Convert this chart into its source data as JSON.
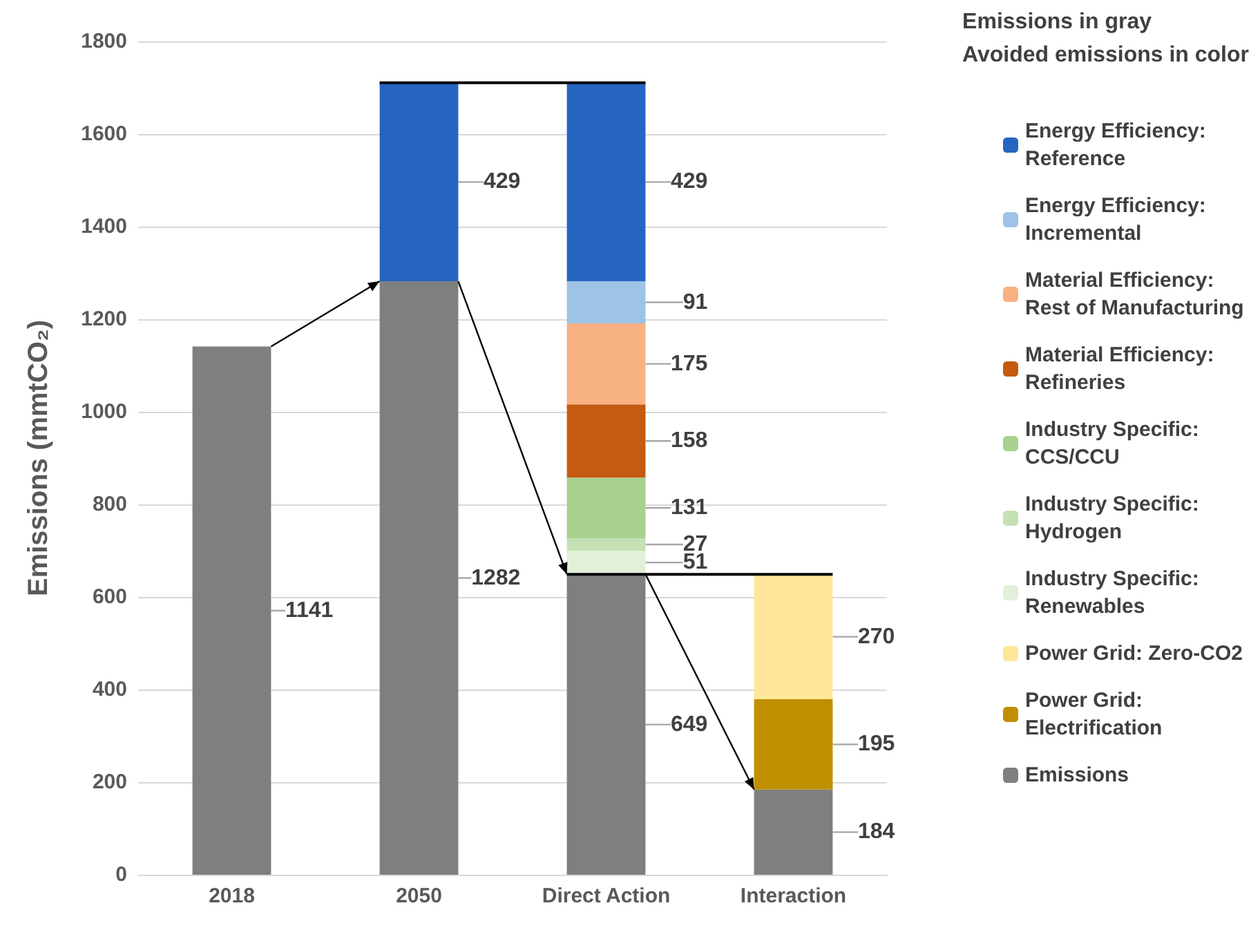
{
  "chart_data": {
    "type": "bar",
    "stacked": true,
    "ylabel": "Emissions (mmtCO₂)",
    "legend_title": "Emissions in gray\nAvoided emissions in color",
    "categories": [
      "2018",
      "2050",
      "Direct Action",
      "Interaction"
    ],
    "series": [
      {
        "name": "Emissions",
        "color": "#7f7f7f",
        "values": [
          1141,
          1282,
          649,
          184
        ]
      },
      {
        "name": "Power Grid: Electrification",
        "color": "#bf8f00",
        "values": [
          null,
          null,
          null,
          195
        ]
      },
      {
        "name": "Power Grid: Zero-CO2",
        "color": "#ffe699",
        "values": [
          null,
          null,
          null,
          270
        ]
      },
      {
        "name": "Industry Specific: Renewables",
        "color": "#e2f0d9",
        "values": [
          null,
          null,
          51,
          null
        ]
      },
      {
        "name": "Industry Specific: Hydrogen",
        "color": "#c5e0b4",
        "values": [
          null,
          null,
          27,
          null
        ]
      },
      {
        "name": "Industry Specific: CCS/CCU",
        "color": "#a9d18e",
        "values": [
          null,
          null,
          131,
          null
        ]
      },
      {
        "name": "Material Efficiency: Refineries",
        "color": "#c55a11",
        "values": [
          null,
          null,
          158,
          null
        ]
      },
      {
        "name": "Material Efficiency: Rest of Manufacturing",
        "color": "#f8b183",
        "values": [
          null,
          null,
          175,
          null
        ]
      },
      {
        "name": "Energy Efficiency: Incremental",
        "color": "#9dc3e6",
        "values": [
          null,
          null,
          91,
          null
        ]
      },
      {
        "name": "Energy Efficiency: Reference",
        "color": "#2565c0",
        "values": [
          null,
          429,
          429,
          null
        ]
      }
    ],
    "ylim": [
      0,
      1800
    ],
    "yticks": [
      0,
      200,
      400,
      600,
      800,
      1000,
      1200,
      1400,
      1600,
      1800
    ],
    "grid": "y",
    "legend": "right",
    "data_labels": true
  }
}
